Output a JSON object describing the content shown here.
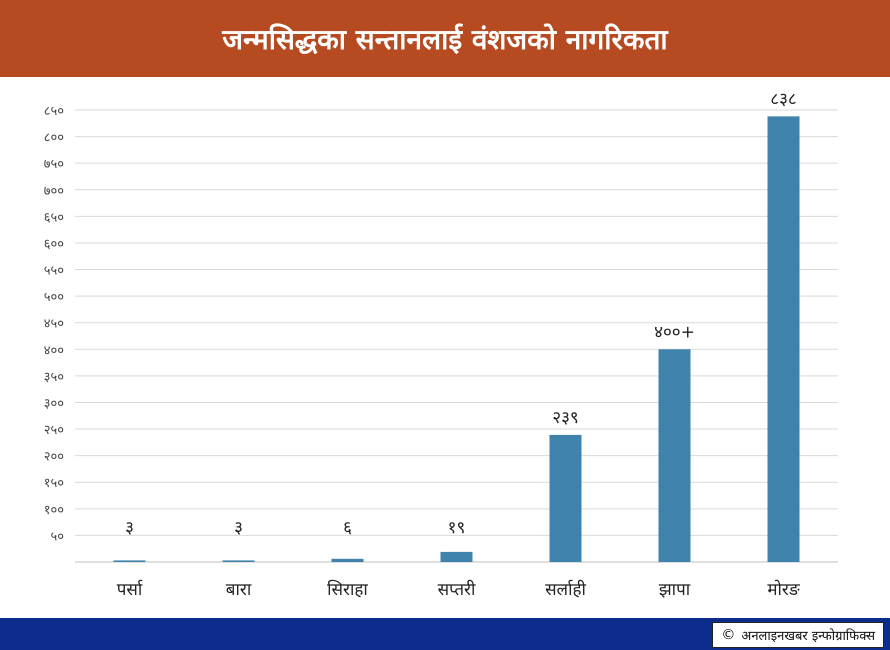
{
  "header": {
    "title": "जन्मसिद्धका सन्तानलाई वंशजको नागरिकता"
  },
  "footer": {
    "credit": "अनलाइनखबर इन्फोग्राफिक्स"
  },
  "colors": {
    "header_bg": "#b64a21",
    "bar": "#3f83ac",
    "footer_bg": "#0c2d8c"
  },
  "chart_data": {
    "type": "bar",
    "categories": [
      "पर्सा",
      "बारा",
      "सिराहा",
      "सप्तरी",
      "सर्लाही",
      "झापा",
      "मोरङ"
    ],
    "values": [
      3,
      3,
      6,
      19,
      239,
      400,
      838
    ],
    "data_labels": [
      "३",
      "३",
      "६",
      "१९",
      "२३९",
      "४००+",
      "८३८"
    ],
    "yticks": [
      50,
      100,
      150,
      200,
      250,
      300,
      350,
      400,
      450,
      500,
      550,
      600,
      650,
      700,
      750,
      800,
      850
    ],
    "ytick_labels": [
      "५०",
      "१००",
      "१५०",
      "२००",
      "२५०",
      "३००",
      "३५०",
      "४००",
      "४५०",
      "५००",
      "५५०",
      "६००",
      "६५०",
      "७००",
      "७५०",
      "८००",
      "८५०"
    ],
    "ylim": [
      0,
      850
    ],
    "grid": true
  }
}
